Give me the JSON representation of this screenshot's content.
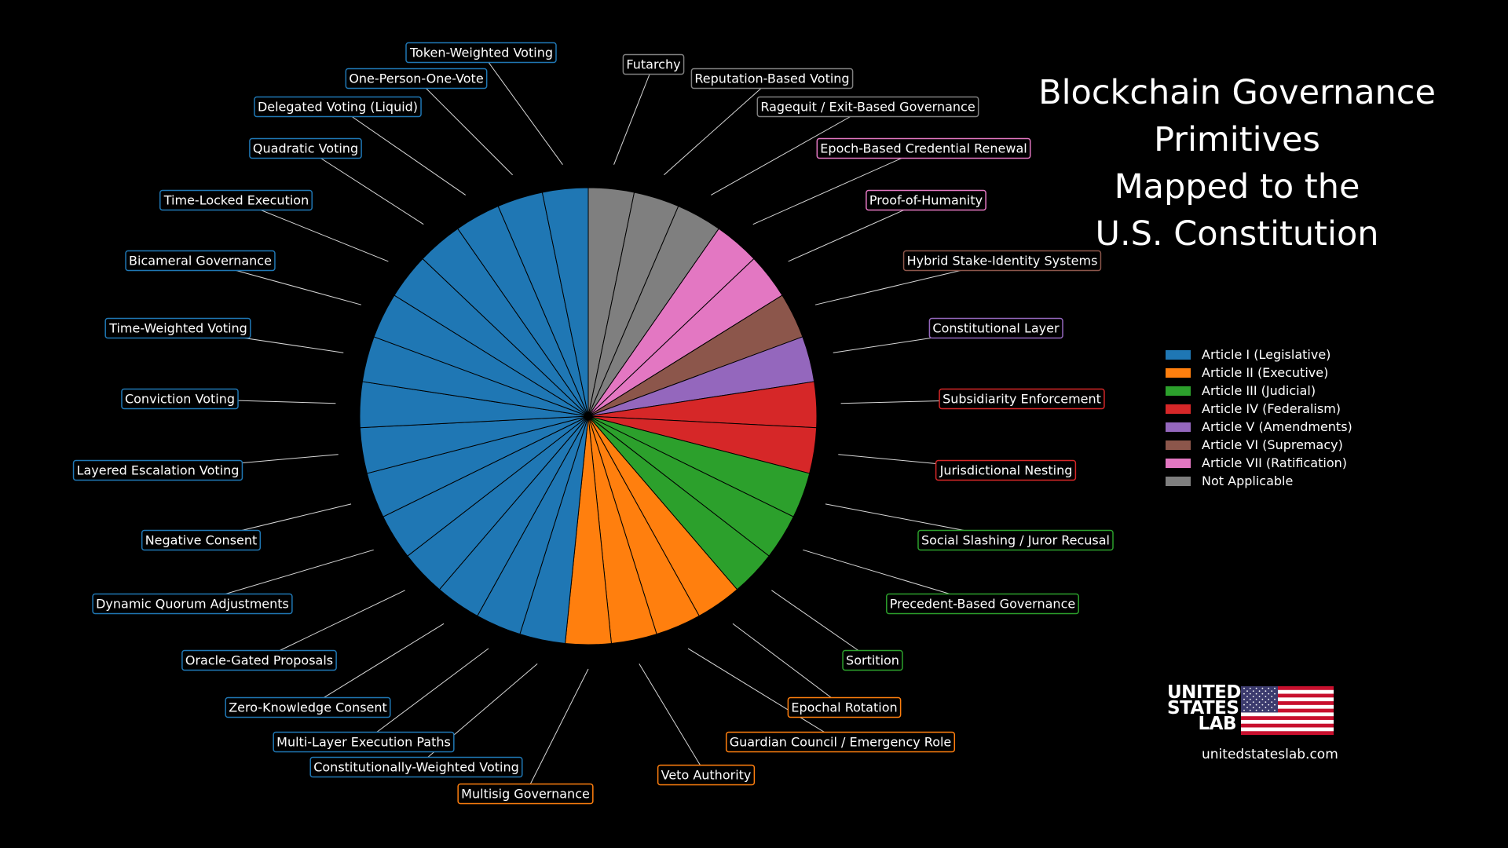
{
  "title_lines": [
    "Blockchain Governance",
    "Primitives",
    "Mapped to the",
    "U.S. Constitution"
  ],
  "brand": {
    "line1": "UNITED",
    "line2": "STATES",
    "line3": "LAB",
    "url": "unitedstateslab.com"
  },
  "chart_data": {
    "type": "pie",
    "title": "Blockchain Governance Primitives Mapped to the U.S. Constitution",
    "legend_position": "right",
    "legend": [
      {
        "label": "Article I (Legislative)",
        "color": "#1f77b4"
      },
      {
        "label": "Article II (Executive)",
        "color": "#ff7f0e"
      },
      {
        "label": "Article III (Judicial)",
        "color": "#2ca02c"
      },
      {
        "label": "Article IV (Federalism)",
        "color": "#d62728"
      },
      {
        "label": "Article V (Amendments)",
        "color": "#9467bd"
      },
      {
        "label": "Article VI (Supremacy)",
        "color": "#8c564b"
      },
      {
        "label": "Article VII (Ratification)",
        "color": "#e377c2"
      },
      {
        "label": "Not Applicable",
        "color": "#7f7f7f"
      }
    ],
    "slices": [
      {
        "label": "Futarchy",
        "article": 7,
        "value": 1
      },
      {
        "label": "Reputation-Based Voting",
        "article": 7,
        "value": 1
      },
      {
        "label": "Ragequit / Exit-Based Governance",
        "article": 7,
        "value": 1
      },
      {
        "label": "Epoch-Based Credential Renewal",
        "article": 6,
        "value": 1
      },
      {
        "label": "Proof-of-Humanity",
        "article": 6,
        "value": 1
      },
      {
        "label": "Hybrid Stake-Identity Systems",
        "article": 5,
        "value": 1
      },
      {
        "label": "Constitutional Layer",
        "article": 4,
        "value": 1
      },
      {
        "label": "Subsidiarity Enforcement",
        "article": 3,
        "value": 1
      },
      {
        "label": "Jurisdictional Nesting",
        "article": 3,
        "value": 1
      },
      {
        "label": "Social Slashing / Juror Recusal",
        "article": 2,
        "value": 1
      },
      {
        "label": "Precedent-Based Governance",
        "article": 2,
        "value": 1
      },
      {
        "label": "Sortition",
        "article": 2,
        "value": 1
      },
      {
        "label": "Epochal Rotation",
        "article": 1,
        "value": 1
      },
      {
        "label": "Guardian Council / Emergency Role",
        "article": 1,
        "value": 1
      },
      {
        "label": "Veto Authority",
        "article": 1,
        "value": 1
      },
      {
        "label": "Multisig Governance",
        "article": 1,
        "value": 1
      },
      {
        "label": "Constitutionally-Weighted Voting",
        "article": 0,
        "value": 1
      },
      {
        "label": "Multi-Layer Execution Paths",
        "article": 0,
        "value": 1
      },
      {
        "label": "Zero-Knowledge Consent",
        "article": 0,
        "value": 1
      },
      {
        "label": "Oracle-Gated Proposals",
        "article": 0,
        "value": 1
      },
      {
        "label": "Dynamic Quorum Adjustments",
        "article": 0,
        "value": 1
      },
      {
        "label": "Negative Consent",
        "article": 0,
        "value": 1
      },
      {
        "label": "Layered Escalation Voting",
        "article": 0,
        "value": 1
      },
      {
        "label": "Conviction Voting",
        "article": 0,
        "value": 1
      },
      {
        "label": "Time-Weighted Voting",
        "article": 0,
        "value": 1
      },
      {
        "label": "Bicameral Governance",
        "article": 0,
        "value": 1
      },
      {
        "label": "Time-Locked Execution",
        "article": 0,
        "value": 1
      },
      {
        "label": "Quadratic Voting",
        "article": 0,
        "value": 1
      },
      {
        "label": "Delegated Voting (Liquid)",
        "article": 0,
        "value": 1
      },
      {
        "label": "One-Person-One-Vote",
        "article": 0,
        "value": 1
      },
      {
        "label": "Token-Weighted Voting",
        "article": 0,
        "value": 1
      }
    ]
  }
}
